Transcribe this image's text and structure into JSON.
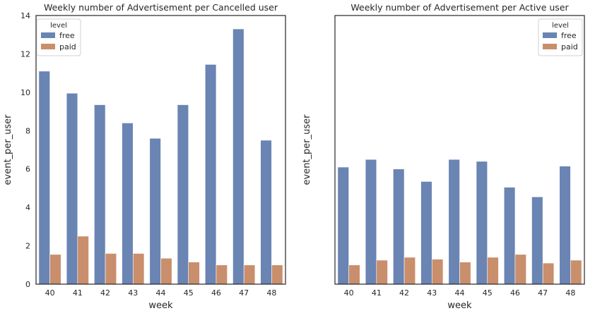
{
  "chart_data": [
    {
      "type": "bar",
      "title": "Weekly number of Advertisement per Cancelled user",
      "xlabel": "week",
      "ylabel": "event_per_user",
      "categories": [
        "40",
        "41",
        "42",
        "43",
        "44",
        "45",
        "46",
        "47",
        "48"
      ],
      "ylim": [
        0,
        14
      ],
      "yticks": [
        "0",
        "2",
        "4",
        "6",
        "8",
        "10",
        "12",
        "14"
      ],
      "grid": false,
      "legend": {
        "title": "level",
        "position": "top-left"
      },
      "series": [
        {
          "name": "free",
          "color": "#6a84b3",
          "values": [
            11.1,
            9.95,
            9.35,
            8.4,
            7.6,
            9.35,
            11.45,
            13.3,
            7.5
          ]
        },
        {
          "name": "paid",
          "color": "#c98e6c",
          "values": [
            1.55,
            2.5,
            1.6,
            1.6,
            1.35,
            1.15,
            1.0,
            1.0,
            1.0
          ]
        }
      ]
    },
    {
      "type": "bar",
      "title": "Weekly number of Advertisement per Active user",
      "xlabel": "week",
      "ylabel": "event_per_user",
      "categories": [
        "40",
        "41",
        "42",
        "43",
        "44",
        "45",
        "46",
        "47",
        "48"
      ],
      "ylim": [
        0,
        14
      ],
      "yticks": [],
      "grid": false,
      "legend": {
        "title": "level",
        "position": "top-right"
      },
      "series": [
        {
          "name": "free",
          "color": "#6a84b3",
          "values": [
            6.1,
            6.5,
            6.0,
            5.35,
            6.5,
            6.4,
            5.05,
            4.55,
            6.15
          ]
        },
        {
          "name": "paid",
          "color": "#c98e6c",
          "values": [
            1.0,
            1.25,
            1.4,
            1.3,
            1.15,
            1.4,
            1.55,
            1.1,
            1.25
          ]
        }
      ]
    }
  ]
}
